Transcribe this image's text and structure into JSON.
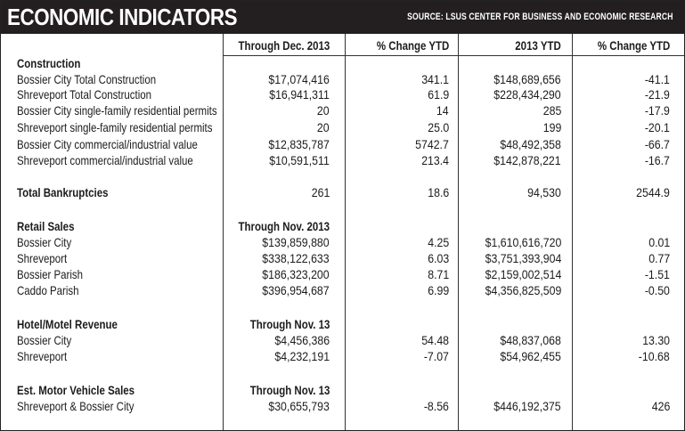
{
  "title": "ECONOMIC INDICATORS",
  "source": "SOURCE: LSUS CENTER FOR BUSINESS AND ECONOMIC RESEARCH",
  "columns": [
    "Through Dec. 2013",
    "% Change YTD",
    "2013 YTD",
    "% Change YTD"
  ],
  "construction": {
    "heading": "Construction",
    "rows": [
      [
        "Bossier City Total Construction",
        "$17,074,416",
        "341.1",
        "$148,689,656",
        "-41.1"
      ],
      [
        "Shreveport Total Construction",
        "$16,941,311",
        "61.9",
        "$228,434,290",
        "-21.9"
      ],
      [
        "Bossier City single-family residential permits",
        "20",
        "14",
        "285",
        "-17.9"
      ],
      [
        "Shreveport single-family residential permits",
        "20",
        "25.0",
        "199",
        "-20.1"
      ],
      [
        "Bossier City commercial/industrial value",
        "$12,835,787",
        "5742.7",
        "$48,492,358",
        "-66.7"
      ],
      [
        "Shreveport commercial/industrial value",
        "$10,591,511",
        "213.4",
        "$142,878,221",
        "-16.7"
      ]
    ]
  },
  "bankruptcies": [
    "Total Bankruptcies",
    "261",
    "18.6",
    "94,530",
    "2544.9"
  ],
  "retail": {
    "heading": "Retail Sales",
    "period": "Through Nov. 2013",
    "rows": [
      [
        "Bossier City",
        "$139,859,880",
        "4.25",
        "$1,610,616,720",
        "0.01"
      ],
      [
        "Shreveport",
        "$338,122,633",
        "6.03",
        "$3,751,393,904",
        "0.77"
      ],
      [
        "Bossier Parish",
        "$186,323,200",
        "8.71",
        "$2,159,002,514",
        "-1.51"
      ],
      [
        "Caddo Parish",
        "$396,954,687",
        "6.99",
        "$4,356,825,509",
        "-0.50"
      ]
    ]
  },
  "hotel": {
    "heading": "Hotel/Motel Revenue",
    "period": "Through Nov. 13",
    "rows": [
      [
        "Bossier City",
        "$4,456,386",
        "54.48",
        "$48,837,068",
        "13.30"
      ],
      [
        "Shreveport",
        "$4,232,191",
        "-7.07",
        "$54,962,455",
        "-10.68"
      ]
    ]
  },
  "vehicle": {
    "heading": "Est. Motor Vehicle Sales",
    "period": "Through Nov. 13",
    "rows": [
      [
        "Shreveport & Bossier City",
        "$30,655,793",
        "-8.56",
        "$446,192,375",
        "426"
      ]
    ]
  }
}
